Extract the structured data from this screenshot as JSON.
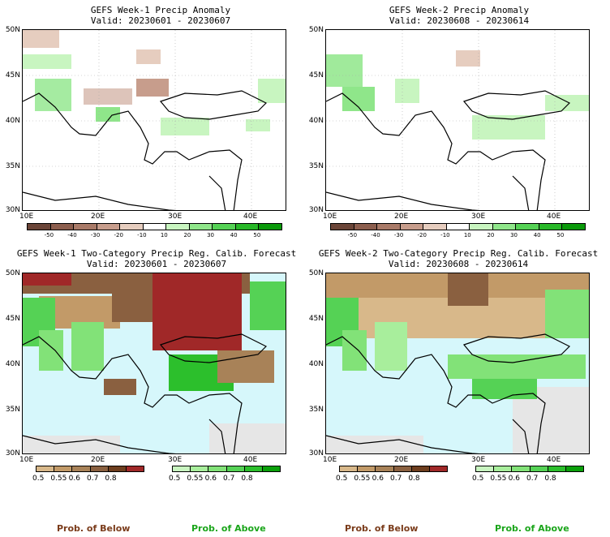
{
  "panels": [
    {
      "title1": "GEFS Week-1 Precip Anomaly",
      "title2": "Valid: 20230601 - 20230607"
    },
    {
      "title1": "GEFS Week-2 Precip Anomaly",
      "title2": "Valid: 20230608 - 20230614"
    },
    {
      "title1": "GEFS Week-1 Two-Category Precip Reg. Calib. Forecast",
      "title2": "Valid: 20230601 - 20230607"
    },
    {
      "title1": "GEFS Week-2 Two-Category Precip Reg. Calib. Forecast",
      "title2": "Valid: 20230608 - 20230614"
    }
  ],
  "axes": {
    "lat_labels": [
      "50N",
      "45N",
      "40N",
      "35N",
      "30N"
    ],
    "lon_labels": [
      "10E",
      "20E",
      "30E",
      "40E"
    ]
  },
  "anomaly_colorbar": {
    "ticks": [
      "-50",
      "-40",
      "-30",
      "-20",
      "-10",
      "10",
      "20",
      "30",
      "40",
      "50"
    ],
    "colors": [
      "#6b4538",
      "#8c5e4e",
      "#a97a68",
      "#c79d8c",
      "#e6cdbf",
      "#ffffff",
      "#c8f5c0",
      "#8fe68a",
      "#55d255",
      "#28b828",
      "#0a9a0a"
    ]
  },
  "prob_colorbars": {
    "below_ticks": [
      "0.5",
      "0.55",
      "0.6",
      "0.7",
      "0.8"
    ],
    "below_colors": [
      "#d8b88a",
      "#c29a68",
      "#a88258",
      "#8a6040",
      "#6e3e1e",
      "#a02828"
    ],
    "above_ticks": [
      "0.5",
      "0.55",
      "0.6",
      "0.7",
      "0.8"
    ],
    "above_colors": [
      "#c8f5c0",
      "#a8ee9c",
      "#82e278",
      "#55d255",
      "#2cbf2c",
      "#0aa00a"
    ],
    "below_label": "Prob. of Below",
    "above_label": "Prob. of Above"
  },
  "colors": {
    "sea": "#d6f7fb",
    "no_data": "#e6e6e6",
    "below_label": "#7a3b1a",
    "above_label": "#1aa51a"
  }
}
